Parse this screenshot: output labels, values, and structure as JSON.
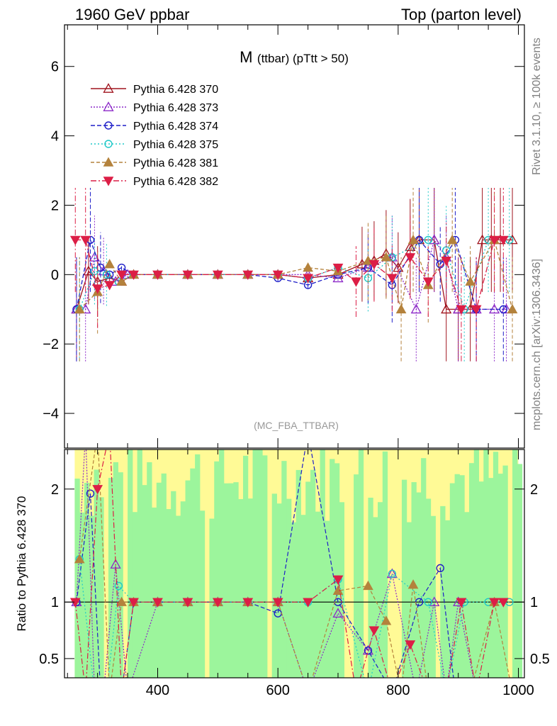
{
  "header": {
    "left": "1960 GeV ppbar",
    "right": "Top (parton level)"
  },
  "side": {
    "rivet": "Rivet 3.1.10, ≥ 100k events",
    "mcplots": "mcplots.cern.ch [arXiv:1306.3436]"
  },
  "chart_data": {
    "type": "scatter",
    "title_main": "M",
    "title_sub": "(ttbar) (pTtt > 50)",
    "analysis": "(MC_FBA_TTBAR)",
    "xlim": [
      245,
      1010
    ],
    "xticks": [
      400,
      600,
      800,
      1000
    ],
    "main": {
      "ylim": [
        -5,
        7.2
      ],
      "yticks": [
        -4,
        -2,
        0,
        2,
        4,
        6
      ]
    },
    "ratio": {
      "ylabel": "Ratio to Pythia 6.428 370",
      "ylim": [
        0.33,
        2.35
      ],
      "yticks": [
        0.5,
        1,
        2
      ],
      "ytick_labels": [
        "0.5",
        "1",
        "2"
      ],
      "reference": 1
    },
    "colors": {
      "370": "#a0141e",
      "373": "#8c28c8",
      "374": "#1e1ec8",
      "375": "#1ec8c8",
      "381": "#b4823c",
      "382": "#dc1e46",
      "band_inner": "#9cf59c",
      "band_outer": "#fffa96"
    },
    "series": [
      {
        "name": "Pythia 6.428 370",
        "key": "370",
        "x": [
          265,
          285,
          300,
          320,
          340,
          360,
          400,
          450,
          500,
          550,
          600,
          650,
          700,
          740,
          760,
          780,
          800,
          820,
          835,
          860,
          880,
          900,
          920,
          940,
          955,
          970,
          990
        ],
        "y": [
          -1,
          0.1,
          -0.2,
          -0.1,
          -0.2,
          0,
          0,
          0,
          0,
          0,
          0,
          -0.1,
          0,
          0.3,
          0.4,
          0.6,
          0.2,
          0.8,
          1,
          1,
          -1,
          -1,
          -1,
          1,
          1,
          1,
          1
        ]
      },
      {
        "name": "Pythia 6.428 373",
        "key": "373",
        "x": [
          265,
          280,
          295,
          310,
          330,
          350,
          400,
          450,
          500,
          550,
          600,
          650,
          700,
          750,
          790,
          830,
          860,
          880,
          900,
          930,
          960,
          980
        ],
        "y": [
          -1,
          -1,
          0.5,
          0.1,
          -0.2,
          0,
          0,
          0,
          0,
          0,
          0,
          0,
          -0.1,
          0.2,
          0.5,
          -1,
          1,
          0.5,
          -1,
          -1,
          -1,
          -1
        ]
      },
      {
        "name": "Pythia 6.428 374",
        "key": "374",
        "x": [
          265,
          288,
          305,
          320,
          340,
          360,
          400,
          450,
          500,
          550,
          600,
          650,
          700,
          750,
          790,
          835,
          870,
          895,
          930,
          975
        ],
        "y": [
          -1,
          1,
          0.2,
          0,
          0.2,
          0,
          0,
          0,
          0,
          0,
          -0.1,
          -0.3,
          0,
          0.2,
          -0.3,
          1,
          0.3,
          1,
          -1,
          -1
        ]
      },
      {
        "name": "Pythia 6.428 375",
        "key": "375",
        "x": [
          270,
          295,
          315,
          335,
          360,
          400,
          450,
          500,
          550,
          600,
          650,
          700,
          750,
          790,
          850,
          880,
          910,
          950,
          985
        ],
        "y": [
          -1,
          0.1,
          0,
          -0.2,
          0,
          0,
          0,
          0,
          0,
          0,
          -0.1,
          0.2,
          -0.1,
          0.5,
          1,
          0.7,
          -1,
          1,
          1
        ]
      },
      {
        "name": "Pythia 6.428 381",
        "key": "381",
        "x": [
          270,
          300,
          320,
          340,
          360,
          400,
          450,
          500,
          550,
          600,
          650,
          700,
          750,
          780,
          805,
          825,
          850,
          890,
          920,
          960,
          990
        ],
        "y": [
          -1,
          -0.5,
          0.3,
          -0.2,
          0,
          0,
          0,
          0,
          0,
          0,
          0.2,
          0.1,
          0.4,
          0.5,
          -1,
          1,
          -0.3,
          1,
          -0.2,
          1,
          -1
        ]
      },
      {
        "name": "Pythia 6.428 382",
        "key": "382",
        "x": [
          263,
          280,
          300,
          320,
          340,
          360,
          400,
          450,
          500,
          550,
          600,
          650,
          700,
          730,
          760,
          790,
          820,
          850,
          880,
          905,
          930,
          960,
          975
        ],
        "y": [
          1,
          1,
          -0.4,
          -0.3,
          0,
          0,
          0,
          0,
          0,
          0,
          0,
          -0.1,
          0.2,
          -0.2,
          0.3,
          -0.1,
          0.5,
          -0.2,
          0.4,
          -1,
          -1,
          1,
          1
        ]
      }
    ]
  }
}
